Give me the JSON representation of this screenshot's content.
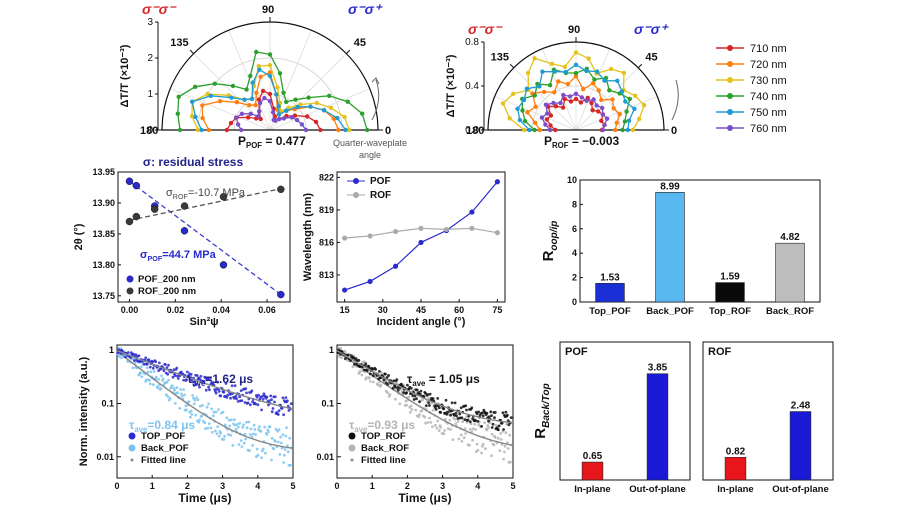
{
  "chart_data": [
    {
      "id": "polar_pof",
      "type": "polar-line",
      "ylabel": "ΔT/T (×10⁻³)",
      "r_ticks": [
        "3",
        "2",
        "1",
        "0"
      ],
      "angle_ticks": [
        "180",
        "135",
        "90",
        "45",
        "0"
      ],
      "corner_left": "σ⁻σ⁻",
      "corner_right": "σ⁻σ⁺",
      "p_label": "P",
      "p_sub": "POF",
      "p_value": " = 0.477",
      "r_max": 3,
      "series": [
        {
          "name": "710 nm",
          "color": "#d62728",
          "r": [
            1.2,
            1.1,
            1.0,
            0.7,
            0.5,
            0.4,
            0.6,
            0.9,
            1.1,
            1.0,
            0.6,
            0.4,
            0.3,
            0.4,
            0.6,
            0.8,
            1.1,
            1.3,
            1.4
          ]
        },
        {
          "name": "720 nm",
          "color": "#ff7f0e",
          "r": [
            1.7,
            1.9,
            2.0,
            1.6,
            1.2,
            0.9,
            0.8,
            1.1,
            1.5,
            1.6,
            1.0,
            0.6,
            0.5,
            0.7,
            0.9,
            1.3,
            1.6,
            1.8,
            1.9
          ]
        },
        {
          "name": "730 nm",
          "color": "#e3c21b",
          "r": [
            2.0,
            2.2,
            2.3,
            2.0,
            1.5,
            1.1,
            1.0,
            1.3,
            1.8,
            1.8,
            1.2,
            0.8,
            0.6,
            0.8,
            1.1,
            1.5,
            1.8,
            2.1,
            2.2
          ]
        },
        {
          "name": "740 nm",
          "color": "#2ca02c",
          "r": [
            2.5,
            2.6,
            2.7,
            2.4,
            2.0,
            1.6,
            1.3,
            1.6,
            2.2,
            2.1,
            1.6,
            1.1,
            0.9,
            1.1,
            1.4,
            1.9,
            2.3,
            2.6,
            2.7
          ]
        },
        {
          "name": "750 nm",
          "color": "#1f9bd1",
          "r": [
            1.9,
            2.1,
            2.3,
            1.9,
            1.4,
            1.1,
            1.0,
            1.4,
            1.7,
            1.5,
            1.0,
            0.7,
            0.5,
            0.7,
            1.0,
            1.3,
            1.6,
            1.9,
            2.1
          ]
        },
        {
          "name": "760 nm",
          "color": "#7b4fc9",
          "r": [
            0.8,
            0.9,
            1.0,
            0.9,
            0.7,
            0.5,
            0.6,
            0.8,
            0.9,
            0.8,
            0.5,
            0.3,
            0.3,
            0.4,
            0.5,
            0.7,
            0.8,
            0.9,
            1.0
          ]
        }
      ]
    },
    {
      "id": "polar_rof",
      "type": "polar-line",
      "ylabel": "ΔT/T (×10⁻³)",
      "r_ticks": [
        "0.8",
        "0.4",
        "0.0"
      ],
      "angle_ticks": [
        "180",
        "135",
        "90",
        "45",
        "0"
      ],
      "corner_left": "σ⁻σ⁻",
      "corner_right": "σ⁻σ⁺",
      "p_label": "P",
      "p_sub": "ROF",
      "p_value": " = −0.003",
      "r_max": 0.85,
      "series": [
        {
          "name": "710 nm",
          "color": "#d62728",
          "r": [
            0.2,
            0.25,
            0.3,
            0.28,
            0.35,
            0.3,
            0.25,
            0.32,
            0.28,
            0.3,
            0.27,
            0.33,
            0.3,
            0.25,
            0.28,
            0.3,
            0.26,
            0.28,
            0.25
          ]
        },
        {
          "name": "720 nm",
          "color": "#ff7f0e",
          "r": [
            0.35,
            0.4,
            0.5,
            0.45,
            0.55,
            0.48,
            0.42,
            0.5,
            0.45,
            0.52,
            0.4,
            0.48,
            0.44,
            0.38,
            0.46,
            0.42,
            0.45,
            0.4,
            0.38
          ]
        },
        {
          "name": "730 nm",
          "color": "#e3c21b",
          "r": [
            0.5,
            0.65,
            0.75,
            0.7,
            0.6,
            0.72,
            0.8,
            0.68,
            0.62,
            0.75,
            0.7,
            0.58,
            0.68,
            0.72,
            0.6,
            0.66,
            0.7,
            0.62,
            0.55
          ]
        },
        {
          "name": "740 nm",
          "color": "#2ca02c",
          "r": [
            0.4,
            0.5,
            0.55,
            0.6,
            0.52,
            0.58,
            0.5,
            0.62,
            0.56,
            0.55,
            0.6,
            0.52,
            0.58,
            0.5,
            0.55,
            0.6,
            0.52,
            0.48,
            0.45
          ]
        },
        {
          "name": "750 nm",
          "color": "#1f9bd1",
          "r": [
            0.45,
            0.55,
            0.6,
            0.58,
            0.62,
            0.55,
            0.65,
            0.6,
            0.57,
            0.63,
            0.58,
            0.6,
            0.55,
            0.62,
            0.58,
            0.55,
            0.6,
            0.52,
            0.5
          ]
        },
        {
          "name": "760 nm",
          "color": "#7b4fc9",
          "r": [
            0.25,
            0.3,
            0.35,
            0.32,
            0.38,
            0.34,
            0.3,
            0.36,
            0.33,
            0.35,
            0.32,
            0.3,
            0.34,
            0.31,
            0.33,
            0.3,
            0.32,
            0.28,
            0.26
          ]
        }
      ]
    },
    {
      "id": "scatter_2theta",
      "type": "scatter",
      "title": "σ: residual stress",
      "xlabel": "Sin²ψ",
      "ylabel": "2θ (°)",
      "xlim": [
        -0.005,
        0.07
      ],
      "ylim": [
        13.74,
        13.95
      ],
      "x_ticks": [
        "0.00",
        "0.02",
        "0.04",
        "0.06"
      ],
      "x_tick_vals": [
        0,
        0.02,
        0.04,
        0.06
      ],
      "y_ticks": [
        "13.75",
        "13.80",
        "13.85",
        "13.90",
        "13.95"
      ],
      "y_tick_vals": [
        13.75,
        13.8,
        13.85,
        13.9,
        13.95
      ],
      "annotations": {
        "rof": "σ",
        "rof_sub": "ROF",
        "rof_val": "=-10.7 MPa",
        "pof": "σ",
        "pof_sub": "POF",
        "pof_val": "=44.7 MPa"
      },
      "series": [
        {
          "name": "POF_200 nm",
          "color": "#2a2ac9",
          "x": [
            0.0,
            0.003,
            0.011,
            0.024,
            0.041,
            0.066
          ],
          "y": [
            13.935,
            13.928,
            13.895,
            13.855,
            13.8,
            13.752
          ]
        },
        {
          "name": "ROF_200 nm",
          "color": "#3a3a3a",
          "x": [
            0.0,
            0.003,
            0.011,
            0.024,
            0.041,
            0.066
          ],
          "y": [
            13.87,
            13.878,
            13.89,
            13.895,
            13.91,
            13.922
          ]
        }
      ],
      "fits": [
        {
          "color": "#3c3cd0",
          "x": [
            0.0,
            0.066
          ],
          "y": [
            13.935,
            13.752
          ]
        },
        {
          "color": "#555555",
          "x": [
            0.0,
            0.066
          ],
          "y": [
            13.872,
            13.923
          ]
        }
      ]
    },
    {
      "id": "line_wavelength",
      "type": "line",
      "xlabel": "Incident angle (°)",
      "ylabel": "Wavelength (nm)",
      "xlim": [
        12,
        78
      ],
      "ylim": [
        810.5,
        822.5
      ],
      "x_ticks": [
        "15",
        "30",
        "45",
        "60",
        "75"
      ],
      "x_tick_vals": [
        15,
        30,
        45,
        60,
        75
      ],
      "y_ticks": [
        "813",
        "816",
        "819",
        "822"
      ],
      "y_tick_vals": [
        813,
        816,
        819,
        822
      ],
      "x": [
        15,
        25,
        35,
        45,
        55,
        65,
        75
      ],
      "series": [
        {
          "name": "POF",
          "color": "#2a2ad0",
          "values": [
            811.6,
            812.4,
            813.8,
            816.0,
            817.1,
            818.8,
            821.6
          ]
        },
        {
          "name": "ROF",
          "color": "#aaaaaa",
          "values": [
            816.4,
            816.6,
            817.0,
            817.3,
            817.2,
            817.3,
            816.9
          ]
        }
      ]
    },
    {
      "id": "bar_oop",
      "type": "bar",
      "ylabel": "R",
      "ylabel_sub": "oop/ip",
      "ylim": [
        0,
        10
      ],
      "y_ticks": [
        "0",
        "2",
        "4",
        "6",
        "8",
        "10"
      ],
      "y_tick_vals": [
        0,
        2,
        4,
        6,
        8,
        10
      ],
      "categories": [
        "Top_POF",
        "Back_POF",
        "Top_ROF",
        "Back_ROF"
      ],
      "values": [
        1.53,
        8.99,
        1.59,
        4.82
      ],
      "labels": [
        "1.53",
        "8.99",
        "1.59",
        "4.82"
      ],
      "colors": [
        "#1a2fd6",
        "#5ab8f0",
        "#0a0a0a",
        "#bdbdbd"
      ]
    },
    {
      "id": "decay_pof",
      "type": "scatter-log",
      "xlabel": "Time (μs)",
      "ylabel": "Norm. intensity (a.u.)",
      "xlim": [
        0,
        5
      ],
      "x_ticks": [
        "0",
        "1",
        "2",
        "3",
        "4",
        "5"
      ],
      "y_ticks": [
        "1",
        "0.1",
        "0.01"
      ],
      "y_tick_vals": [
        1,
        0.1,
        0.01
      ],
      "tau_top": "τ",
      "tau_top_sub": "ave",
      "tau_top_val": "=1.62 μs",
      "tau_back": "τ",
      "tau_back_sub": "ave",
      "tau_back_val": "=0.84 μs",
      "series": [
        {
          "name": "TOP_POF",
          "color": "#2a2ad0",
          "tau": 1.62
        },
        {
          "name": "Back_POF",
          "color": "#7cc4ef",
          "tau": 0.84
        },
        {
          "name": "Fitted line",
          "color": "#888888"
        }
      ]
    },
    {
      "id": "decay_rof",
      "type": "scatter-log",
      "xlabel": "Time (μs)",
      "xlim": [
        0,
        5
      ],
      "x_ticks": [
        "0",
        "1",
        "2",
        "3",
        "4",
        "5"
      ],
      "y_ticks": [
        "1",
        "0.1",
        "0.01"
      ],
      "y_tick_vals": [
        1,
        0.1,
        0.01
      ],
      "tau_top": "τ",
      "tau_top_sub": "ave",
      "tau_top_val": " = 1.05 μs",
      "tau_back": "τ",
      "tau_back_sub": "ave",
      "tau_back_val": "=0.93 μs",
      "series": [
        {
          "name": "TOP_ROF",
          "color": "#111111",
          "tau": 1.05
        },
        {
          "name": "Back_ROF",
          "color": "#b5b5b5",
          "tau": 0.93
        },
        {
          "name": "Fitted line",
          "color": "#888888"
        }
      ]
    },
    {
      "id": "bar_back_top_pof",
      "type": "bar",
      "title": "POF",
      "ylabel": "R",
      "ylabel_sub": "Back/Top",
      "ylim": [
        0,
        5
      ],
      "categories": [
        "In-plane",
        "Out-of-plane"
      ],
      "values": [
        0.65,
        3.85
      ],
      "labels": [
        "0.65",
        "3.85"
      ],
      "colors": [
        "#e8161b",
        "#1a1ad6"
      ]
    },
    {
      "id": "bar_back_top_rof",
      "type": "bar",
      "title": "ROF",
      "ylim": [
        0,
        5
      ],
      "categories": [
        "In-plane",
        "Out-of-plane"
      ],
      "values": [
        0.82,
        2.48
      ],
      "labels": [
        "0.82",
        "2.48"
      ],
      "colors": [
        "#e8161b",
        "#1a1ad6"
      ]
    }
  ],
  "shared": {
    "quarter_waveplate_label": [
      "Quarter-waveplate",
      "angle"
    ]
  }
}
